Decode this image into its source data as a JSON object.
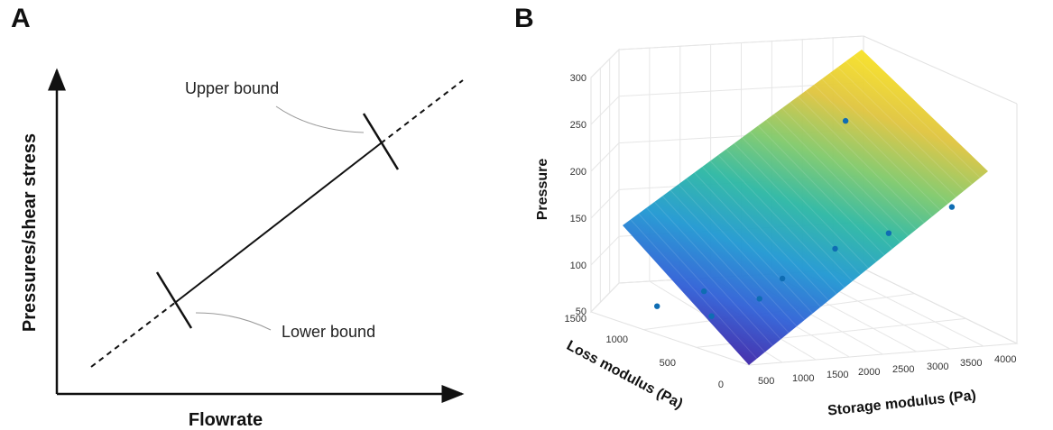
{
  "panels": {
    "a_label": "A",
    "b_label": "B"
  },
  "chart_data": [
    {
      "type": "line",
      "panel": "A",
      "xlabel": "Flowrate",
      "ylabel": "Pressures/shear stress",
      "annotations": [
        "Upper bound",
        "Lower bound"
      ],
      "series": [
        {
          "style": "solid",
          "segment": "between bounds"
        },
        {
          "style": "dashed",
          "segment": "extrapolation"
        }
      ],
      "grid": false,
      "ticks": false,
      "color": "#111111"
    },
    {
      "type": "scatter",
      "subtype": "3d-surface-with-points",
      "panel": "B",
      "xlabel": "Storage modulus (Pa)",
      "ylabel": "Loss modulus (Pa)",
      "zlabel": "Pressure",
      "x_ticks": [
        "500",
        "1000",
        "1500",
        "2000",
        "2500",
        "3000",
        "3500",
        "4000"
      ],
      "y_ticks": [
        "0",
        "500",
        "1000",
        "1500"
      ],
      "z_ticks": [
        "50",
        "100",
        "150",
        "200",
        "250",
        "300"
      ],
      "xlim": [
        0,
        4000
      ],
      "ylim": [
        0,
        1500
      ],
      "zlim": [
        50,
        300
      ],
      "grid": true,
      "colormap": [
        "#3e26a8",
        "#2f5fd6",
        "#1f97d2",
        "#2bb7a3",
        "#7ec96b",
        "#dfc43e",
        "#f8e224"
      ],
      "point_color": "#0f6db3",
      "points": [
        {
          "x": 500,
          "y": 0,
          "z": 125
        },
        {
          "x": 200,
          "y": 1000,
          "z": 70
        },
        {
          "x": 700,
          "y": 800,
          "z": 65
        },
        {
          "x": 900,
          "y": 1000,
          "z": 80
        },
        {
          "x": 1100,
          "y": 600,
          "z": 85
        },
        {
          "x": 1600,
          "y": 200,
          "z": 140
        },
        {
          "x": 2400,
          "y": 200,
          "z": 150
        },
        {
          "x": 2700,
          "y": 800,
          "z": 230
        },
        {
          "x": 3500,
          "y": 300,
          "z": 165
        }
      ]
    }
  ]
}
